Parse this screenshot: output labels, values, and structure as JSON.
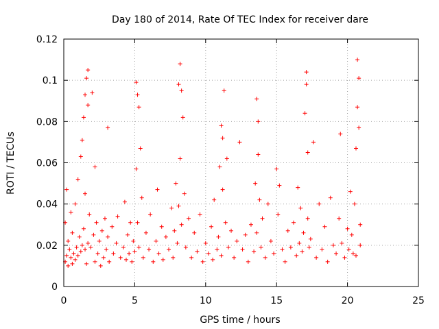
{
  "chart_data": {
    "type": "scatter",
    "title": "Day 180 of 2014, Rate Of TEC Index for receiver dare",
    "xlabel": "GPS time / hours",
    "ylabel": "ROTI / TECUs",
    "xlim": [
      0,
      25
    ],
    "ylim": [
      0,
      0.12
    ],
    "grid": true,
    "marker": "+",
    "color": "#ff0000",
    "xticks": [
      0,
      5,
      10,
      15,
      20,
      25
    ],
    "xtick_labels": [
      "0",
      "5",
      "10",
      "15",
      "20",
      "25"
    ],
    "yticks": [
      0,
      0.02,
      0.04,
      0.06,
      0.08,
      0.1,
      0.12
    ],
    "ytick_labels": [
      "0",
      "0.02",
      "0.04",
      "0.06",
      "0.08",
      "0.1",
      "0.12"
    ],
    "series": [
      {
        "name": "ROTI",
        "x": [
          0.1,
          0.1,
          0.2,
          0.2,
          0.3,
          0.3,
          0.4,
          0.5,
          0.5,
          0.6,
          0.6,
          0.7,
          0.8,
          0.8,
          0.9,
          1.0,
          1.0,
          1.1,
          1.2,
          1.2,
          1.3,
          1.3,
          1.4,
          1.4,
          1.5,
          1.5,
          1.5,
          1.6,
          1.6,
          1.7,
          1.7,
          1.7,
          1.8,
          1.9,
          2.0,
          2.1,
          2.2,
          2.2,
          2.3,
          2.4,
          2.5,
          2.6,
          2.7,
          2.8,
          2.9,
          3.0,
          3.1,
          3.1,
          3.2,
          3.4,
          3.5,
          3.7,
          3.8,
          4.0,
          4.2,
          4.3,
          4.4,
          4.5,
          4.6,
          4.7,
          4.8,
          4.9,
          5.0,
          5.1,
          5.1,
          5.2,
          5.2,
          5.3,
          5.3,
          5.4,
          5.5,
          5.6,
          5.8,
          6.0,
          6.1,
          6.3,
          6.5,
          6.6,
          6.7,
          6.9,
          7.0,
          7.2,
          7.4,
          7.6,
          7.7,
          7.8,
          7.9,
          8.0,
          8.1,
          8.1,
          8.2,
          8.2,
          8.3,
          8.3,
          8.4,
          8.5,
          8.6,
          8.8,
          9.0,
          9.2,
          9.4,
          9.6,
          9.8,
          10.0,
          10.2,
          10.4,
          10.5,
          10.6,
          10.8,
          10.9,
          11.0,
          11.1,
          11.1,
          11.2,
          11.2,
          11.3,
          11.4,
          11.5,
          11.6,
          11.8,
          12.0,
          12.2,
          12.4,
          12.6,
          12.8,
          13.0,
          13.2,
          13.4,
          13.5,
          13.6,
          13.6,
          13.7,
          13.7,
          13.8,
          13.9,
          14.0,
          14.2,
          14.4,
          14.6,
          14.8,
          15.0,
          15.1,
          15.2,
          15.4,
          15.6,
          15.8,
          16.0,
          16.2,
          16.4,
          16.5,
          16.6,
          16.7,
          16.8,
          16.9,
          17.0,
          17.1,
          17.1,
          17.2,
          17.2,
          17.3,
          17.4,
          17.6,
          17.8,
          18.0,
          18.2,
          18.4,
          18.6,
          18.8,
          19.0,
          19.2,
          19.4,
          19.5,
          19.6,
          19.8,
          20.0,
          20.1,
          20.2,
          20.3,
          20.4,
          20.5,
          20.6,
          20.6,
          20.7,
          20.7,
          20.8,
          20.8,
          20.9,
          20.9
        ],
        "y": [
          0.012,
          0.031,
          0.015,
          0.047,
          0.01,
          0.022,
          0.018,
          0.014,
          0.036,
          0.011,
          0.026,
          0.016,
          0.013,
          0.04,
          0.019,
          0.015,
          0.052,
          0.024,
          0.017,
          0.063,
          0.02,
          0.071,
          0.028,
          0.082,
          0.018,
          0.093,
          0.045,
          0.011,
          0.101,
          0.021,
          0.088,
          0.105,
          0.035,
          0.019,
          0.094,
          0.025,
          0.012,
          0.058,
          0.031,
          0.016,
          0.022,
          0.01,
          0.027,
          0.014,
          0.033,
          0.018,
          0.077,
          0.024,
          0.012,
          0.029,
          0.016,
          0.021,
          0.034,
          0.014,
          0.019,
          0.041,
          0.013,
          0.025,
          0.016,
          0.031,
          0.012,
          0.022,
          0.017,
          0.099,
          0.057,
          0.093,
          0.031,
          0.087,
          0.019,
          0.067,
          0.043,
          0.014,
          0.026,
          0.018,
          0.035,
          0.012,
          0.022,
          0.047,
          0.016,
          0.029,
          0.013,
          0.024,
          0.018,
          0.038,
          0.014,
          0.027,
          0.05,
          0.021,
          0.098,
          0.039,
          0.108,
          0.062,
          0.095,
          0.03,
          0.082,
          0.045,
          0.019,
          0.033,
          0.014,
          0.026,
          0.017,
          0.035,
          0.012,
          0.021,
          0.016,
          0.029,
          0.013,
          0.042,
          0.018,
          0.024,
          0.058,
          0.078,
          0.015,
          0.072,
          0.047,
          0.095,
          0.031,
          0.062,
          0.019,
          0.027,
          0.014,
          0.022,
          0.07,
          0.018,
          0.025,
          0.012,
          0.03,
          0.017,
          0.05,
          0.091,
          0.026,
          0.08,
          0.064,
          0.042,
          0.019,
          0.033,
          0.014,
          0.04,
          0.022,
          0.016,
          0.057,
          0.035,
          0.049,
          0.018,
          0.012,
          0.027,
          0.019,
          0.031,
          0.015,
          0.048,
          0.021,
          0.038,
          0.017,
          0.026,
          0.084,
          0.104,
          0.098,
          0.065,
          0.033,
          0.019,
          0.023,
          0.07,
          0.014,
          0.04,
          0.018,
          0.029,
          0.012,
          0.043,
          0.02,
          0.016,
          0.033,
          0.074,
          0.021,
          0.014,
          0.028,
          0.018,
          0.046,
          0.025,
          0.016,
          0.04,
          0.015,
          0.067,
          0.087,
          0.11,
          0.101,
          0.077,
          0.02,
          0.03
        ]
      }
    ]
  }
}
